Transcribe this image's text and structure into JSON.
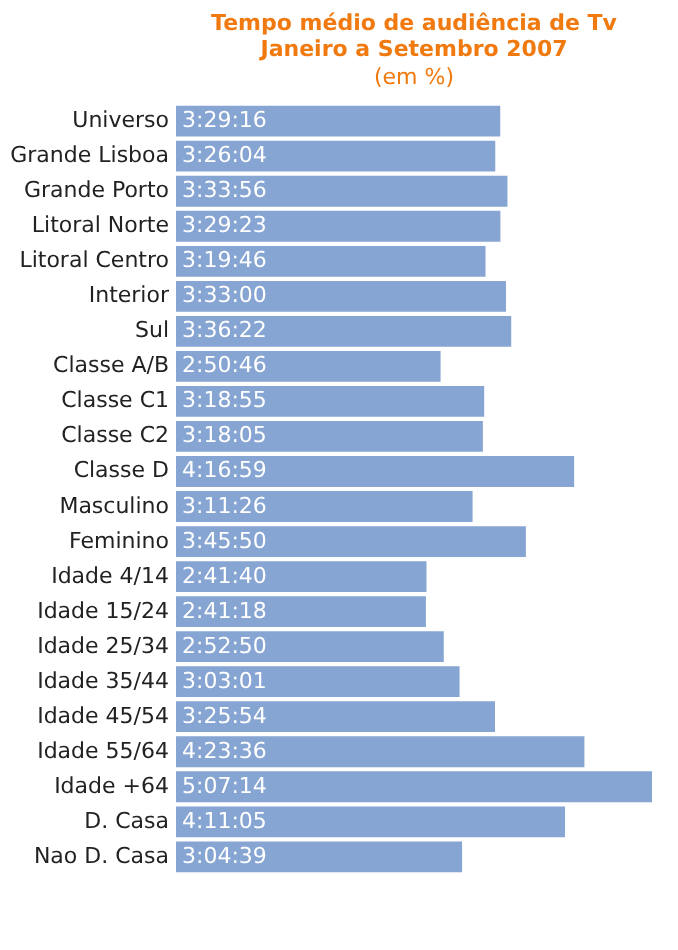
{
  "chart_data": {
    "type": "bar",
    "orientation": "horizontal",
    "title": "Tempo médio de audiência de Tv\nJaneiro a Setembro 2007",
    "subtitle": "(em %)",
    "categories": [
      "Universo",
      "Grande Lisboa",
      "Grande Porto",
      "Litoral Norte",
      "Litoral Centro",
      "Interior",
      "Sul",
      "Classe A/B",
      "Classe C1",
      "Classe C2",
      "Classe D",
      "Masculino",
      "Feminino",
      "Idade 4/14",
      "Idade 15/24",
      "Idade 25/34",
      "Idade 35/44",
      "Idade 45/54",
      "Idade 55/64",
      "Idade +64",
      "D. Casa",
      "Nao D. Casa"
    ],
    "values": [
      209.27,
      206.07,
      213.93,
      209.38,
      199.77,
      213.0,
      216.37,
      170.77,
      198.92,
      198.08,
      256.98,
      191.43,
      225.83,
      161.67,
      161.3,
      172.83,
      183.02,
      205.9,
      263.6,
      307.23,
      251.08,
      184.65
    ],
    "value_labels": [
      "3:29:16",
      "3:26:04",
      "3:33:56",
      "3:29:23",
      "3:19:46",
      "3:33:00",
      "3:36:22",
      "2:50:46",
      "3:18:55",
      "3:18:05",
      "4:16:59",
      "3:11:26",
      "3:45:50",
      "2:41:40",
      "2:41:18",
      "2:52:50",
      "3:03:01",
      "3:25:54",
      "4:23:36",
      "5:07:14",
      "4:11:05",
      "3:04:39"
    ],
    "color": "#87a5d3"
  }
}
